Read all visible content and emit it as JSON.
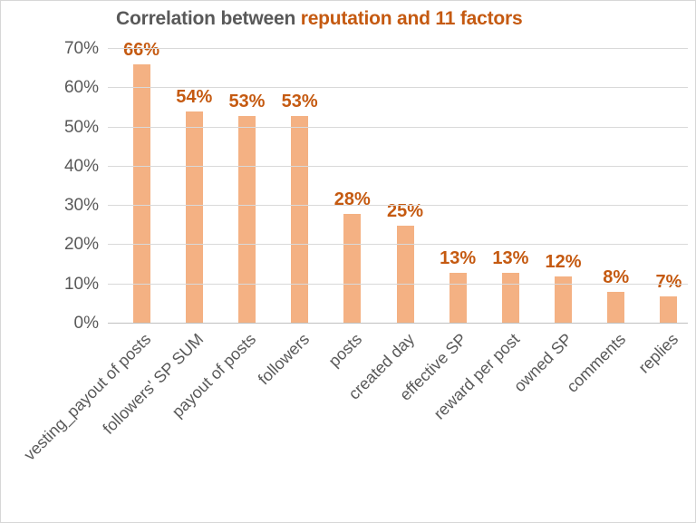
{
  "title": {
    "prefix": "Correlation between ",
    "highlight": "reputation and 11 factors"
  },
  "colors": {
    "title_prefix": "#595959",
    "title_highlight": "#c55a11",
    "bar_fill": "#f4b183",
    "value_label": "#c55a11",
    "axis_text": "#595959",
    "gridline": "#d9d9d9",
    "baseline": "#bfbfbf",
    "frame_border": "#d7d7d7"
  },
  "chart_data": {
    "type": "bar",
    "title": "Correlation between reputation and 11 factors",
    "categories": [
      "vesting_payout of posts",
      "followers' SP SUM",
      "payout of posts",
      "followers",
      "posts",
      "created day",
      "effective SP",
      "reward per post",
      "owned SP",
      "comments",
      "replies"
    ],
    "values": [
      66,
      54,
      53,
      53,
      28,
      25,
      13,
      13,
      12,
      8,
      7
    ],
    "value_labels": [
      "66%",
      "54%",
      "53%",
      "53%",
      "28%",
      "25%",
      "13%",
      "13%",
      "12%",
      "8%",
      "7%"
    ],
    "xlabel": "",
    "ylabel": "",
    "ylim": [
      0,
      70
    ],
    "ytick_labels": [
      "0%",
      "10%",
      "20%",
      "30%",
      "40%",
      "50%",
      "60%",
      "70%"
    ],
    "ytick_values": [
      0,
      10,
      20,
      30,
      40,
      50,
      60,
      70
    ],
    "grid": true,
    "legend": false,
    "x_labels_rotation_deg": 45
  }
}
